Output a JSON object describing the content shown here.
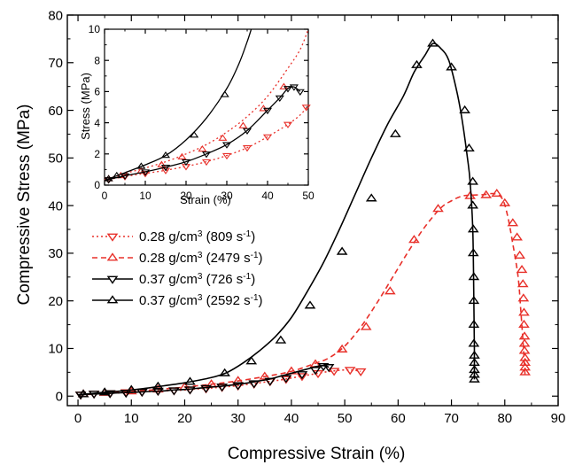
{
  "chart_data": {
    "type": "line",
    "title": "",
    "xlabel": "Compressive Strain (%)",
    "ylabel": "Compressive Stress (MPa)",
    "xlim": [
      -2,
      90
    ],
    "ylim": [
      -2,
      80
    ],
    "xticks": [
      0,
      10,
      20,
      30,
      40,
      50,
      60,
      70,
      80,
      90
    ],
    "yticks": [
      0,
      10,
      20,
      30,
      40,
      50,
      60,
      70,
      80
    ],
    "grid": false,
    "legend_position": "center-left",
    "legend": [
      {
        "main": "0.28 g/cm",
        "sup1": "3",
        "mid": " (809 s",
        "sup2": "-1",
        "end": ")"
      },
      {
        "main": "0.28 g/cm",
        "sup1": "3",
        "mid": " (2479 s",
        "sup2": "-1",
        "end": ")"
      },
      {
        "main": "0.37 g/cm",
        "sup1": "3",
        "mid": " (726 s",
        "sup2": "-1",
        "end": ")"
      },
      {
        "main": "0.37 g/cm",
        "sup1": "3",
        "mid": " (2592 s",
        "sup2": "-1",
        "end": ")"
      }
    ],
    "series": [
      {
        "name": "0.28 g/cm3 (809 s-1)",
        "color": "#e8302a",
        "dash": "dotted",
        "marker": "triangle-down",
        "x": [
          0,
          2,
          4,
          6,
          8,
          10,
          12,
          14,
          16,
          18,
          20,
          22,
          24,
          26,
          28,
          30,
          32,
          34,
          36,
          38,
          40,
          42,
          44,
          46,
          48,
          50,
          52,
          53
        ],
        "y": [
          0.2,
          0.4,
          0.5,
          0.6,
          0.7,
          0.8,
          0.9,
          1.0,
          1.1,
          1.2,
          1.3,
          1.5,
          1.6,
          1.8,
          2.0,
          2.2,
          2.5,
          2.8,
          3.1,
          3.4,
          3.8,
          4.2,
          4.6,
          5.0,
          5.3,
          5.5,
          5.4,
          5.2
        ],
        "marker_x": [
          0.5,
          3,
          6,
          9,
          12,
          15,
          18,
          21,
          24,
          27,
          30,
          33,
          36,
          39,
          42,
          45,
          48,
          51,
          53
        ],
        "marker_y": [
          0.3,
          0.5,
          0.6,
          0.8,
          0.9,
          1.1,
          1.2,
          1.4,
          1.6,
          1.9,
          2.2,
          2.6,
          3.1,
          3.6,
          4.2,
          4.8,
          5.3,
          5.5,
          5.2
        ]
      },
      {
        "name": "0.28 g/cm3 (2479 s-1)",
        "color": "#e8302a",
        "dash": "dashed",
        "marker": "triangle-up",
        "x": [
          0,
          5,
          10,
          15,
          20,
          25,
          30,
          35,
          40,
          44,
          47,
          50,
          53,
          56,
          59,
          62,
          65,
          68,
          70,
          72,
          74,
          76,
          78,
          79.5,
          80.5,
          81.5,
          82.5,
          83,
          83.5,
          83.7,
          83.8
        ],
        "y": [
          0.2,
          0.6,
          1.0,
          1.4,
          1.9,
          2.5,
          3.2,
          4.1,
          5.2,
          6.7,
          8.0,
          10.5,
          14.5,
          19.5,
          25.0,
          30.5,
          35.5,
          39.5,
          41.0,
          42.0,
          42.2,
          42.3,
          42.5,
          41.5,
          38.0,
          32.0,
          25.0,
          18.0,
          10.0,
          6.0,
          4.5
        ],
        "marker_x": [
          1,
          5,
          10,
          15,
          20,
          25,
          30,
          35,
          40,
          44.5,
          49.5,
          54,
          58.5,
          63,
          67.5,
          73.5,
          76.5,
          78.5,
          80,
          81.5,
          82.3,
          82.8,
          83.2,
          83.4,
          83.5,
          83.6,
          83.6,
          83.7,
          83.7,
          83.7,
          83.8,
          83.8,
          83.8,
          83.8
        ],
        "marker_y": [
          0.4,
          0.7,
          1.0,
          1.4,
          1.9,
          2.5,
          3.2,
          4.1,
          5.2,
          6.7,
          9.8,
          14.5,
          22.0,
          32.8,
          39.3,
          42.0,
          42.2,
          42.5,
          40.5,
          36.3,
          33.3,
          29.5,
          26.5,
          23.5,
          20.5,
          17.5,
          15.0,
          12.5,
          11.0,
          9.5,
          8.0,
          7.0,
          6.0,
          5.0
        ]
      },
      {
        "name": "0.37 g/cm3 (726 s-1)",
        "color": "#000000",
        "dash": "solid",
        "marker": "triangle-down",
        "x": [
          0,
          2,
          4,
          6,
          8,
          10,
          12,
          14,
          16,
          18,
          20,
          22,
          24,
          26,
          28,
          30,
          32,
          34,
          36,
          38,
          40,
          42,
          44,
          45,
          46,
          47
        ],
        "y": [
          0.2,
          0.4,
          0.5,
          0.6,
          0.7,
          0.8,
          0.9,
          1.0,
          1.1,
          1.3,
          1.4,
          1.6,
          1.8,
          2.0,
          2.2,
          2.5,
          2.8,
          3.2,
          3.6,
          4.2,
          4.8,
          5.4,
          6.0,
          6.3,
          6.4,
          6.1
        ],
        "marker_x": [
          0.5,
          3,
          6,
          9,
          12,
          15,
          18,
          21,
          24,
          27,
          30,
          33,
          36,
          39,
          42,
          44.5,
          46,
          47
        ],
        "marker_y": [
          0.3,
          0.5,
          0.6,
          0.7,
          0.9,
          1.1,
          1.2,
          1.4,
          1.7,
          2.0,
          2.3,
          2.7,
          3.2,
          3.8,
          4.6,
          5.5,
          6.3,
          6.1
        ]
      },
      {
        "name": "0.37 g/cm3 (2592 s-1)",
        "color": "#000000",
        "dash": "solid",
        "marker": "triangle-up",
        "x": [
          0,
          5,
          10,
          15,
          20,
          25,
          28,
          31,
          34,
          37,
          40,
          43,
          46,
          49,
          52,
          55,
          58,
          61,
          63,
          65,
          66.5,
          68,
          69.5,
          71,
          72,
          73,
          73.5,
          74,
          74.2,
          74.3,
          74.3
        ],
        "y": [
          0.3,
          0.8,
          1.3,
          2.0,
          2.8,
          3.9,
          5.0,
          7.0,
          9.5,
          12.5,
          16.5,
          22.0,
          28.0,
          35.0,
          42.5,
          50.0,
          57.0,
          63.0,
          68.0,
          71.5,
          74.0,
          73.0,
          70.5,
          64.0,
          58.0,
          50.0,
          45.0,
          35.0,
          20.0,
          10.0,
          3.5
        ],
        "marker_x": [
          1,
          5,
          10,
          15,
          21,
          27.5,
          32.5,
          38,
          43.5,
          49.5,
          55,
          59.5,
          63.5,
          66.5,
          70,
          72.5,
          73.3,
          74,
          74,
          74.1,
          74.1,
          74.2,
          74.2,
          74.2,
          74.2,
          74.3,
          74.3,
          74.3,
          74.3,
          74.3
        ],
        "marker_y": [
          0.4,
          0.8,
          1.3,
          2.0,
          3.0,
          4.8,
          7.3,
          11.7,
          19.0,
          30.3,
          41.5,
          55.0,
          69.5,
          74.0,
          69.0,
          60.0,
          52.0,
          45.0,
          40.0,
          35.0,
          30.0,
          25.0,
          20.0,
          15.0,
          11.0,
          8.5,
          7.0,
          5.5,
          4.5,
          3.5
        ]
      }
    ],
    "inset": {
      "type": "line",
      "xlabel": "Strain (%)",
      "ylabel": "Stress (MPa)",
      "xlim": [
        0,
        50
      ],
      "ylim": [
        0,
        10
      ],
      "xticks": [
        0,
        10,
        20,
        30,
        40,
        50
      ],
      "yticks": [
        0,
        2,
        4,
        6,
        8,
        10
      ],
      "series": [
        {
          "color": "#e8302a",
          "dash": "dotted",
          "marker": "triangle-down",
          "x": [
            0,
            5,
            10,
            15,
            20,
            25,
            30,
            35,
            40,
            45,
            48,
            50
          ],
          "y": [
            0.3,
            0.55,
            0.75,
            0.95,
            1.2,
            1.5,
            1.9,
            2.4,
            3.1,
            3.9,
            4.5,
            5.1
          ],
          "marker_x": [
            1,
            5,
            10,
            15,
            20,
            25,
            30,
            35,
            40,
            45,
            49.5
          ],
          "marker_y": [
            0.35,
            0.55,
            0.75,
            0.95,
            1.2,
            1.5,
            1.9,
            2.4,
            3.1,
            3.9,
            5.0
          ]
        },
        {
          "color": "#e8302a",
          "dash": "dotted",
          "marker": "triangle-up",
          "x": [
            0,
            5,
            10,
            15,
            20,
            25,
            30,
            35,
            40,
            45,
            48,
            50
          ],
          "y": [
            0.35,
            0.75,
            1.1,
            1.5,
            2.0,
            2.6,
            3.4,
            4.4,
            5.7,
            7.5,
            8.7,
            10.0
          ],
          "marker_x": [
            1,
            4,
            9,
            14,
            19,
            24,
            29,
            34,
            39,
            44
          ],
          "marker_y": [
            0.4,
            0.6,
            0.9,
            1.3,
            1.8,
            2.3,
            3.0,
            3.8,
            4.9,
            6.3
          ]
        },
        {
          "color": "#000000",
          "dash": "solid",
          "marker": "triangle-down",
          "x": [
            0,
            5,
            10,
            15,
            20,
            25,
            30,
            35,
            40,
            43,
            45,
            46.5,
            48
          ],
          "y": [
            0.3,
            0.6,
            0.85,
            1.15,
            1.5,
            2.0,
            2.6,
            3.5,
            4.8,
            5.6,
            6.2,
            6.3,
            6.0
          ],
          "marker_x": [
            1,
            5,
            10,
            15,
            20,
            25,
            30,
            35,
            40,
            43,
            45,
            46.5,
            48
          ],
          "marker_y": [
            0.35,
            0.6,
            0.85,
            1.15,
            1.5,
            2.0,
            2.6,
            3.5,
            4.8,
            5.6,
            6.2,
            6.3,
            6.0
          ]
        },
        {
          "color": "#000000",
          "dash": "solid",
          "marker": "triangle-up",
          "x": [
            0,
            5,
            10,
            15,
            20,
            25,
            30,
            33,
            35,
            36
          ],
          "y": [
            0.3,
            0.8,
            1.3,
            1.9,
            2.9,
            4.3,
            6.2,
            7.8,
            9.2,
            10.0
          ],
          "marker_x": [
            1,
            3,
            9,
            15,
            22,
            29.5
          ],
          "marker_y": [
            0.4,
            0.6,
            1.2,
            1.9,
            3.2,
            5.8
          ]
        }
      ]
    }
  }
}
